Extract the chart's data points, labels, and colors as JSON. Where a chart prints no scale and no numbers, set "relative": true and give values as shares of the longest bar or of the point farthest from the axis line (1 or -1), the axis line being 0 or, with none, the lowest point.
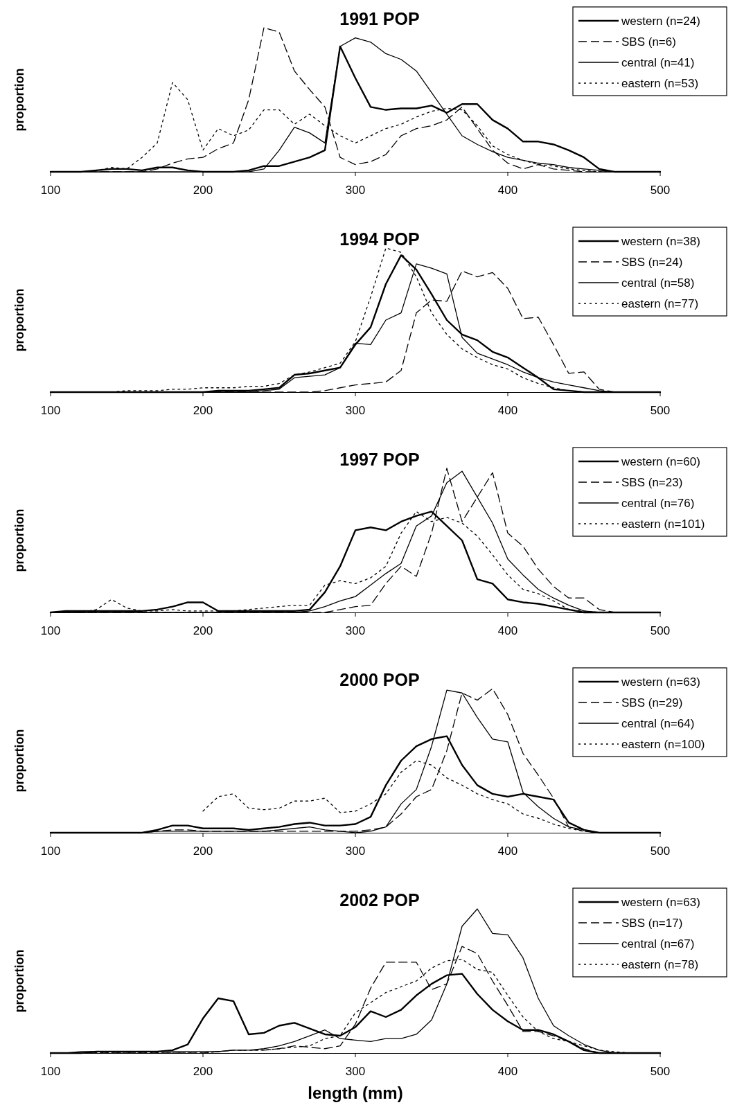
{
  "chart_data": [
    {
      "type": "line",
      "title": "1991 POP",
      "ylabel": "proportion",
      "relative": true,
      "legend": "top right",
      "x": [
        100,
        110,
        120,
        130,
        140,
        150,
        160,
        170,
        180,
        190,
        200,
        210,
        220,
        230,
        240,
        250,
        260,
        270,
        280,
        290,
        300,
        310,
        320,
        330,
        340,
        350,
        360,
        370,
        380,
        390,
        400,
        410,
        420,
        430,
        440,
        450,
        460,
        470,
        480,
        490,
        500
      ],
      "xlim": [
        100,
        500
      ],
      "xticks": [
        100,
        200,
        300,
        400,
        500
      ],
      "series": [
        {
          "name": "western (n=24)",
          "color": "#000000",
          "line_style": "solid",
          "values": [
            0,
            0,
            0,
            0.01,
            0.02,
            0.02,
            0.01,
            0.03,
            0.03,
            0.01,
            0,
            0,
            0,
            0.01,
            0.04,
            0.04,
            0.07,
            0.1,
            0.15,
            0.87,
            0.65,
            0.45,
            0.43,
            0.44,
            0.44,
            0.46,
            0.41,
            0.47,
            0.47,
            0.36,
            0.3,
            0.21,
            0.21,
            0.19,
            0.15,
            0.1,
            0.02,
            0,
            0,
            0,
            0
          ]
        },
        {
          "name": "SBS (n=6)",
          "color": "#000000",
          "line_style": "dashed",
          "values": [
            0,
            0,
            0,
            0,
            0,
            0,
            0,
            0.02,
            0.06,
            0.09,
            0.1,
            0.16,
            0.2,
            0.5,
            1,
            0.97,
            0.7,
            0.57,
            0.45,
            0.1,
            0.05,
            0.07,
            0.12,
            0.25,
            0.3,
            0.32,
            0.36,
            0.45,
            0.3,
            0.15,
            0.06,
            0.02,
            0.05,
            0.02,
            0.01,
            0,
            0,
            0,
            0,
            0,
            0
          ]
        },
        {
          "name": "central (n=41)",
          "color": "#000000",
          "line_style": "solid",
          "values": [
            0,
            0,
            0,
            0,
            0,
            0,
            0,
            0,
            0,
            0,
            0,
            0,
            0,
            0,
            0.02,
            0.15,
            0.31,
            0.27,
            0.2,
            0.87,
            0.93,
            0.9,
            0.82,
            0.78,
            0.7,
            0.55,
            0.4,
            0.25,
            0.19,
            0.14,
            0.1,
            0.08,
            0.06,
            0.05,
            0.03,
            0.02,
            0.01,
            0,
            0,
            0,
            0
          ]
        },
        {
          "name": "eastern (n=53)",
          "color": "#000000",
          "line_style": "dotted",
          "values": [
            0,
            0,
            0,
            0.01,
            0.03,
            0.02,
            0.1,
            0.2,
            0.62,
            0.5,
            0.15,
            0.3,
            0.25,
            0.29,
            0.43,
            0.43,
            0.33,
            0.4,
            0.32,
            0.25,
            0.2,
            0.25,
            0.3,
            0.33,
            0.38,
            0.42,
            0.44,
            0.43,
            0.32,
            0.18,
            0.12,
            0.08,
            0.05,
            0.04,
            0.02,
            0.01,
            0,
            0,
            0,
            0,
            0
          ]
        }
      ]
    },
    {
      "type": "line",
      "title": "1994 POP",
      "ylabel": "proportion",
      "relative": true,
      "legend": "top right",
      "x": [
        100,
        110,
        120,
        130,
        140,
        150,
        160,
        170,
        180,
        190,
        200,
        210,
        220,
        230,
        240,
        250,
        260,
        270,
        280,
        290,
        300,
        310,
        320,
        330,
        340,
        350,
        360,
        370,
        380,
        390,
        400,
        410,
        420,
        430,
        440,
        450,
        460,
        470,
        480,
        490,
        500
      ],
      "xlim": [
        100,
        500
      ],
      "xticks": [
        100,
        200,
        300,
        400,
        500
      ],
      "series": [
        {
          "name": "western (n=38)",
          "color": "#000000",
          "line_style": "solid",
          "values": [
            0,
            0,
            0,
            0,
            0,
            0,
            0,
            0,
            0,
            0,
            0,
            0.01,
            0.01,
            0.01,
            0.02,
            0.03,
            0.12,
            0.13,
            0.15,
            0.17,
            0.33,
            0.45,
            0.75,
            0.95,
            0.85,
            0.68,
            0.5,
            0.4,
            0.36,
            0.28,
            0.24,
            0.17,
            0.1,
            0.02,
            0.01,
            0,
            0,
            0,
            0,
            0,
            0
          ]
        },
        {
          "name": "SBS (n=24)",
          "color": "#000000",
          "line_style": "dashed",
          "values": [
            0,
            0,
            0,
            0,
            0,
            0,
            0,
            0,
            0,
            0,
            0,
            0,
            0,
            0,
            0,
            0,
            0,
            0,
            0.01,
            0.03,
            0.05,
            0.06,
            0.07,
            0.15,
            0.55,
            0.64,
            0.63,
            0.84,
            0.8,
            0.83,
            0.72,
            0.51,
            0.52,
            0.33,
            0.13,
            0.14,
            0.02,
            0,
            0,
            0,
            0
          ]
        },
        {
          "name": "central (n=58)",
          "color": "#000000",
          "line_style": "solid",
          "values": [
            0,
            0,
            0,
            0,
            0,
            0,
            0,
            0,
            0,
            0,
            0,
            0,
            0,
            0,
            0.01,
            0.02,
            0.1,
            0.11,
            0.12,
            0.17,
            0.34,
            0.33,
            0.5,
            0.55,
            0.89,
            0.86,
            0.82,
            0.38,
            0.27,
            0.23,
            0.19,
            0.14,
            0.1,
            0.07,
            0.05,
            0.03,
            0.01,
            0,
            0,
            0,
            0
          ]
        },
        {
          "name": "eastern (n=77)",
          "color": "#000000",
          "line_style": "dotted",
          "values": [
            0,
            0,
            0,
            0,
            0,
            0.01,
            0.01,
            0.01,
            0.02,
            0.02,
            0.03,
            0.03,
            0.03,
            0.04,
            0.04,
            0.06,
            0.12,
            0.14,
            0.17,
            0.2,
            0.35,
            0.66,
            1,
            0.97,
            0.8,
            0.55,
            0.4,
            0.3,
            0.24,
            0.19,
            0.16,
            0.1,
            0.06,
            0.03,
            0.01,
            0,
            0,
            0,
            0,
            0,
            0
          ]
        }
      ]
    },
    {
      "type": "line",
      "title": "1997 POP",
      "ylabel": "proportion",
      "relative": true,
      "legend": "top right",
      "x": [
        100,
        110,
        120,
        130,
        140,
        150,
        160,
        170,
        180,
        190,
        200,
        210,
        220,
        230,
        240,
        250,
        260,
        270,
        280,
        290,
        300,
        310,
        320,
        330,
        340,
        350,
        360,
        370,
        380,
        390,
        400,
        410,
        420,
        430,
        440,
        450,
        460,
        470,
        480,
        490,
        500
      ],
      "xlim": [
        100,
        500
      ],
      "xticks": [
        100,
        200,
        300,
        400,
        500
      ],
      "series": [
        {
          "name": "western (n=60)",
          "color": "#000000",
          "line_style": "solid",
          "values": [
            0,
            0.01,
            0.01,
            0.01,
            0.01,
            0.01,
            0.01,
            0.02,
            0.04,
            0.07,
            0.07,
            0.01,
            0.01,
            0.01,
            0.01,
            0.01,
            0.01,
            0.02,
            0.14,
            0.32,
            0.57,
            0.59,
            0.57,
            0.63,
            0.67,
            0.7,
            0.6,
            0.5,
            0.23,
            0.2,
            0.09,
            0.07,
            0.06,
            0.04,
            0.02,
            0,
            0,
            0,
            0,
            0,
            0
          ]
        },
        {
          "name": "SBS (n=23)",
          "color": "#000000",
          "line_style": "dashed",
          "values": [
            0,
            0,
            0,
            0,
            0,
            0,
            0,
            0,
            0,
            0,
            0,
            0,
            0,
            0,
            0,
            0,
            0,
            0,
            0,
            0.02,
            0.04,
            0.05,
            0.2,
            0.32,
            0.25,
            0.55,
            1,
            0.63,
            0.8,
            0.97,
            0.55,
            0.46,
            0.3,
            0.18,
            0.1,
            0.1,
            0.02,
            0,
            0,
            0,
            0
          ]
        },
        {
          "name": "central (n=76)",
          "color": "#000000",
          "line_style": "solid",
          "values": [
            0,
            0,
            0,
            0,
            0,
            0,
            0,
            0,
            0,
            0,
            0,
            0,
            0,
            0,
            0,
            0,
            0,
            0.01,
            0.04,
            0.08,
            0.11,
            0.19,
            0.27,
            0.34,
            0.6,
            0.67,
            0.9,
            0.98,
            0.8,
            0.62,
            0.37,
            0.26,
            0.16,
            0.1,
            0.05,
            0.01,
            0,
            0,
            0,
            0,
            0
          ]
        },
        {
          "name": "eastern (n=101)",
          "color": "#000000",
          "line_style": "dotted",
          "values": [
            0,
            0,
            0,
            0.02,
            0.09,
            0.03,
            0.01,
            0.01,
            0.02,
            0.01,
            0.01,
            0.01,
            0.01,
            0.02,
            0.03,
            0.04,
            0.05,
            0.05,
            0.19,
            0.22,
            0.2,
            0.24,
            0.32,
            0.55,
            0.7,
            0.63,
            0.66,
            0.62,
            0.53,
            0.4,
            0.26,
            0.16,
            0.13,
            0.08,
            0.02,
            0.01,
            0,
            0,
            0,
            0,
            0
          ]
        }
      ]
    },
    {
      "type": "line",
      "title": "2000 POP",
      "ylabel": "proportion",
      "relative": true,
      "legend": "top right",
      "x": [
        100,
        110,
        120,
        130,
        140,
        150,
        160,
        170,
        180,
        190,
        200,
        210,
        220,
        230,
        240,
        250,
        260,
        270,
        280,
        290,
        300,
        310,
        320,
        330,
        340,
        350,
        360,
        370,
        380,
        390,
        400,
        410,
        420,
        430,
        440,
        450,
        460,
        470,
        480,
        490,
        500
      ],
      "xlim": [
        100,
        500
      ],
      "xticks": [
        100,
        200,
        300,
        400,
        500
      ],
      "series": [
        {
          "name": "western (n=63)",
          "color": "#000000",
          "line_style": "solid",
          "values": [
            0,
            0,
            0,
            0,
            0,
            0,
            0,
            0.02,
            0.05,
            0.05,
            0.03,
            0.03,
            0.03,
            0.02,
            0.03,
            0.04,
            0.06,
            0.07,
            0.05,
            0.05,
            0.06,
            0.11,
            0.33,
            0.5,
            0.6,
            0.65,
            0.67,
            0.47,
            0.33,
            0.27,
            0.25,
            0.27,
            0.25,
            0.23,
            0.07,
            0.02,
            0,
            0,
            0,
            0,
            0
          ]
        },
        {
          "name": "SBS (n=29)",
          "color": "#000000",
          "line_style": "dashed",
          "values": [
            0,
            0,
            0,
            0,
            0,
            0,
            0,
            0.01,
            0.02,
            0.02,
            0.01,
            0.01,
            0.01,
            0.01,
            0.01,
            0.01,
            0.01,
            0.01,
            0.01,
            0.01,
            0.01,
            0.02,
            0.04,
            0.13,
            0.25,
            0.3,
            0.57,
            0.97,
            0.92,
            1,
            0.82,
            0.55,
            0.4,
            0.24,
            0.04,
            0.01,
            0,
            0,
            0,
            0,
            0
          ]
        },
        {
          "name": "central (n=64)",
          "color": "#000000",
          "line_style": "solid",
          "values": [
            0,
            0,
            0,
            0,
            0,
            0,
            0,
            0.01,
            0.01,
            0.01,
            0.01,
            0.01,
            0.01,
            0.01,
            0.01,
            0.02,
            0.03,
            0.04,
            0.02,
            0.01,
            0,
            0.01,
            0.04,
            0.2,
            0.3,
            0.6,
            0.99,
            0.97,
            0.8,
            0.65,
            0.63,
            0.28,
            0.18,
            0.1,
            0.04,
            0.02,
            0,
            0,
            0,
            0,
            0
          ]
        },
        {
          "name": "eastern (n=100)",
          "color": "#000000",
          "line_style": "dotted",
          "values": [
            null,
            null,
            null,
            null,
            null,
            null,
            null,
            null,
            null,
            null,
            0.15,
            0.25,
            0.27,
            0.17,
            0.16,
            0.17,
            0.22,
            0.22,
            0.24,
            0.14,
            0.15,
            0.2,
            0.27,
            0.42,
            0.5,
            0.47,
            0.38,
            0.33,
            0.27,
            0.23,
            0.2,
            0.13,
            0.1,
            0.06,
            0.03,
            0.01,
            0,
            0,
            0,
            0,
            0
          ]
        }
      ]
    },
    {
      "type": "line",
      "title": "2002 POP",
      "ylabel": "proportion",
      "xlabel": "length (mm)",
      "relative": true,
      "legend": "top right",
      "x": [
        100,
        110,
        120,
        130,
        140,
        150,
        160,
        170,
        180,
        190,
        200,
        210,
        220,
        230,
        240,
        250,
        260,
        270,
        280,
        290,
        300,
        310,
        320,
        330,
        340,
        350,
        360,
        370,
        380,
        390,
        400,
        410,
        420,
        430,
        440,
        450,
        460,
        470,
        480,
        490,
        500
      ],
      "xlim": [
        100,
        500
      ],
      "xticks": [
        100,
        200,
        300,
        400,
        500
      ],
      "series": [
        {
          "name": "western (n=63)",
          "color": "#000000",
          "line_style": "solid",
          "values": [
            0,
            0,
            0,
            0.01,
            0.01,
            0.01,
            0.01,
            0.01,
            0.02,
            0.06,
            0.24,
            0.38,
            0.36,
            0.13,
            0.14,
            0.19,
            0.21,
            0.17,
            0.13,
            0.12,
            0.18,
            0.29,
            0.25,
            0.3,
            0.4,
            0.48,
            0.54,
            0.55,
            0.41,
            0.3,
            0.22,
            0.16,
            0.16,
            0.13,
            0.08,
            0.02,
            0,
            0,
            0,
            0,
            0
          ]
        },
        {
          "name": "SBS (n=17)",
          "color": "#000000",
          "line_style": "dashed",
          "values": [
            0,
            0,
            0,
            0,
            0,
            0,
            0,
            0,
            0,
            0,
            0,
            0.01,
            0.02,
            0.02,
            0.02,
            0.03,
            0.05,
            0.04,
            0.03,
            0.05,
            0.2,
            0.45,
            0.63,
            0.63,
            0.63,
            0.44,
            0.48,
            0.74,
            0.69,
            0.5,
            0.33,
            0.15,
            0.15,
            0.12,
            0.08,
            0.03,
            0,
            0,
            0,
            0,
            0
          ]
        },
        {
          "name": "central (n=67)",
          "color": "#000000",
          "line_style": "solid",
          "values": [
            0,
            0,
            0.01,
            0.01,
            0.01,
            0.01,
            0.01,
            0.01,
            0.01,
            0.01,
            0.01,
            0.01,
            0.02,
            0.02,
            0.03,
            0.05,
            0.08,
            0.12,
            0.16,
            0.1,
            0.09,
            0.08,
            0.1,
            0.1,
            0.13,
            0.23,
            0.48,
            0.88,
            1,
            0.83,
            0.82,
            0.66,
            0.38,
            0.19,
            0.12,
            0.06,
            0.02,
            0,
            0,
            0,
            0
          ]
        },
        {
          "name": "eastern (n=78)",
          "color": "#000000",
          "line_style": "dotted",
          "values": [
            0,
            0,
            0,
            0,
            0,
            0,
            0,
            0,
            0,
            0,
            0,
            0.01,
            0.02,
            0.02,
            0.02,
            0.03,
            0.04,
            0.05,
            0.1,
            0.12,
            0.28,
            0.35,
            0.42,
            0.46,
            0.5,
            0.59,
            0.64,
            0.65,
            0.58,
            0.56,
            0.4,
            0.25,
            0.15,
            0.1,
            0.08,
            0.05,
            0.02,
            0.01,
            0,
            0,
            0
          ]
        }
      ]
    }
  ]
}
